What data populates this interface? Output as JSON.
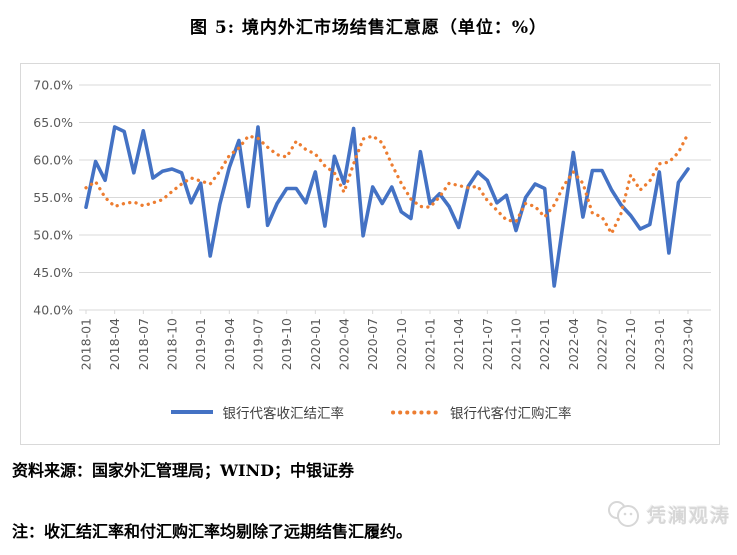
{
  "title": "图 5: 境内外汇市场结售汇意愿（单位：%）",
  "source_note": "资料来源：国家外汇管理局；WIND；中银证券",
  "footnote": "注：收汇结汇率和付汇购汇率均剔除了远期结售汇履约。",
  "watermark": "凭澜观涛",
  "colors": {
    "settlement": "#4472C4",
    "purchase": "#ED7D31",
    "grid": "#D9D9D9",
    "axis_text": "#595959",
    "legend_text": "#404040"
  },
  "chart_data": {
    "type": "line",
    "title": "境内外汇市场结售汇意愿",
    "unit": "%",
    "grid": "horizontal",
    "legend_position": "bottom",
    "ylim": [
      40,
      70
    ],
    "ytick_step": 5,
    "xtick_every": 3,
    "x": [
      "2018-01",
      "2018-02",
      "2018-03",
      "2018-04",
      "2018-05",
      "2018-06",
      "2018-07",
      "2018-08",
      "2018-09",
      "2018-10",
      "2018-11",
      "2018-12",
      "2019-01",
      "2019-02",
      "2019-03",
      "2019-04",
      "2019-05",
      "2019-06",
      "2019-07",
      "2019-08",
      "2019-09",
      "2019-10",
      "2019-11",
      "2019-12",
      "2020-01",
      "2020-02",
      "2020-03",
      "2020-04",
      "2020-05",
      "2020-06",
      "2020-07",
      "2020-08",
      "2020-09",
      "2020-10",
      "2020-11",
      "2020-12",
      "2021-01",
      "2021-02",
      "2021-03",
      "2021-04",
      "2021-05",
      "2021-06",
      "2021-07",
      "2021-08",
      "2021-09",
      "2021-10",
      "2021-11",
      "2021-12",
      "2022-01",
      "2022-02",
      "2022-03",
      "2022-04",
      "2022-05",
      "2022-06",
      "2022-07",
      "2022-08",
      "2022-09",
      "2022-10",
      "2022-11",
      "2022-12",
      "2023-01",
      "2023-02",
      "2023-03",
      "2023-04"
    ],
    "series": [
      {
        "name": "银行代客收汇结汇率",
        "style": "solid",
        "color": "#4472C4",
        "values": [
          53.7,
          59.8,
          57.3,
          64.4,
          63.8,
          58.3,
          63.9,
          57.6,
          58.5,
          58.8,
          58.3,
          54.3,
          56.9,
          47.2,
          54.1,
          59.0,
          62.6,
          53.8,
          64.4,
          51.3,
          54.2,
          56.2,
          56.2,
          54.3,
          58.4,
          51.2,
          60.5,
          56.9,
          64.2,
          49.9,
          56.4,
          54.2,
          56.4,
          53.1,
          52.2,
          61.1,
          54.2,
          55.5,
          53.8,
          51.0,
          56.5,
          58.4,
          57.3,
          54.3,
          55.3,
          50.6,
          55.0,
          56.8,
          56.2,
          43.2,
          52.2,
          61.0,
          52.4,
          58.6,
          58.6,
          56.0,
          54.0,
          52.6,
          50.8,
          51.4,
          58.4,
          47.6,
          57.0,
          58.8
        ]
      },
      {
        "name": "银行代客付汇购汇率",
        "style": "dotted",
        "color": "#ED7D31",
        "values": [
          56.3,
          57.1,
          55.0,
          53.8,
          54.2,
          54.4,
          53.9,
          54.3,
          54.7,
          55.8,
          56.8,
          57.6,
          57.2,
          56.8,
          58.5,
          60.6,
          61.6,
          63.2,
          62.9,
          61.7,
          60.7,
          60.4,
          62.5,
          61.4,
          60.8,
          59.2,
          58.3,
          55.7,
          59.5,
          62.8,
          63.2,
          62.3,
          59.4,
          56.9,
          54.8,
          53.8,
          53.7,
          55.1,
          56.9,
          56.6,
          56.3,
          56.5,
          54.6,
          53.3,
          52.0,
          51.8,
          54.2,
          53.8,
          52.4,
          54.0,
          56.6,
          58.4,
          56.9,
          52.9,
          52.4,
          50.2,
          52.9,
          58.0,
          56.0,
          57.2,
          59.5,
          59.7,
          61.0,
          63.5
        ]
      }
    ]
  }
}
